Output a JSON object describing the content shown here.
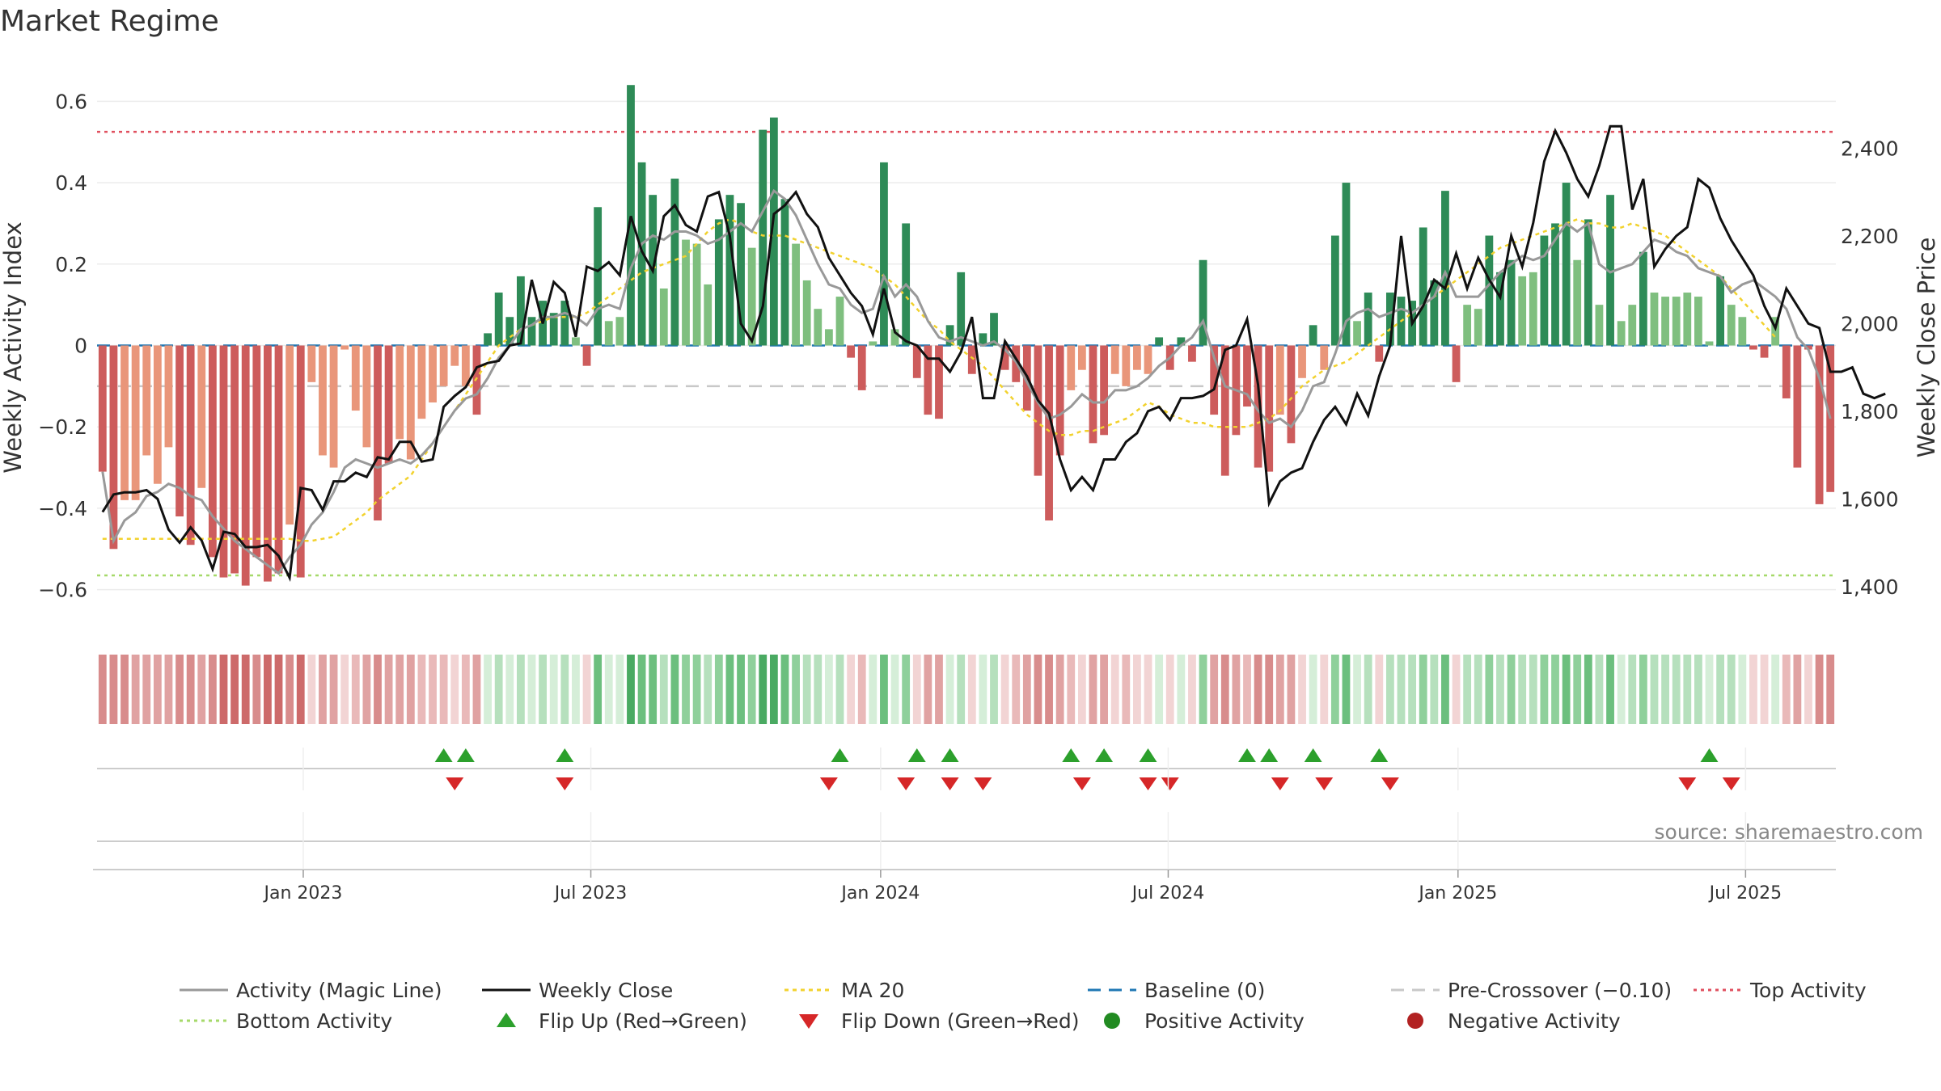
{
  "title": "Market Regime",
  "source": "source: sharemaestro.com",
  "colors": {
    "green_dark": "#2e8b57",
    "green_light": "#7fbf7f",
    "red_dark": "#cd5c5c",
    "red_light": "#e9967a",
    "activity_line": "#999999",
    "close_line": "#111111",
    "ma_line": "#f2d22e",
    "baseline": "#1f77b4",
    "precross": "#c8c8c8",
    "top_line": "#e0505f",
    "bottom_line": "#a6d96a",
    "flip_up": "#2ca02c",
    "flip_down": "#d62728",
    "pos_dot": "#228b22",
    "neg_dot": "#b22222"
  },
  "chart_data": {
    "type": "bar",
    "title": "Market Regime",
    "ylabel_left": "Weekly Activity Index",
    "ylabel_right": "Weekly Close Price",
    "ylim_left": [
      -0.7,
      0.7
    ],
    "ylim_right": [
      1300,
      2600
    ],
    "yticks_left": [
      "0.6",
      "0.4",
      "0.2",
      "0",
      "−0.2",
      "−0.4",
      "−0.6"
    ],
    "yticks_left_values": [
      0.6,
      0.4,
      0.2,
      0,
      -0.2,
      -0.4,
      -0.6
    ],
    "yticks_right": [
      "2,400",
      "2,200",
      "2,000",
      "1,800",
      "1,600",
      "1,400"
    ],
    "yticks_right_values": [
      2400,
      2200,
      2000,
      1800,
      1600,
      1400
    ],
    "x_date_ticks": [
      "Jan 2023",
      "Jul 2023",
      "Jan 2024",
      "Jul 2024",
      "Jan 2025",
      "Jul 2025"
    ],
    "x_date_tick_weeks": [
      18.5,
      44.3,
      70.3,
      96.1,
      122.1,
      147.9
    ],
    "x_week_range": [
      0,
      156
    ],
    "top_activity": 0.525,
    "bottom_activity": -0.565,
    "pre_crossover": -0.1,
    "activity": [
      -0.31,
      -0.5,
      -0.38,
      -0.38,
      -0.27,
      -0.34,
      -0.25,
      -0.42,
      -0.49,
      -0.35,
      -0.52,
      -0.57,
      -0.56,
      -0.59,
      -0.52,
      -0.58,
      -0.56,
      -0.44,
      -0.57,
      -0.09,
      -0.27,
      -0.3,
      -0.01,
      -0.16,
      -0.25,
      -0.43,
      -0.29,
      -0.23,
      -0.28,
      -0.18,
      -0.14,
      -0.1,
      -0.05,
      -0.1,
      -0.17,
      0.03,
      0.13,
      0.07,
      0.17,
      0.07,
      0.11,
      0.08,
      0.11,
      0.02,
      -0.05,
      0.34,
      0.06,
      0.07,
      0.64,
      0.45,
      0.37,
      0.14,
      0.41,
      0.26,
      0.25,
      0.15,
      0.31,
      0.37,
      0.35,
      0.24,
      0.53,
      0.56,
      0.36,
      0.25,
      0.16,
      0.09,
      0.04,
      0.12,
      -0.03,
      -0.11,
      0.01,
      0.45,
      0.04,
      0.3,
      -0.08,
      -0.17,
      -0.18,
      0.05,
      0.18,
      -0.07,
      0.03,
      0.08,
      -0.06,
      -0.09,
      -0.16,
      -0.32,
      -0.43,
      -0.27,
      -0.11,
      -0.06,
      -0.24,
      -0.22,
      -0.07,
      -0.1,
      -0.06,
      -0.07,
      0.02,
      -0.06,
      0.02,
      -0.04,
      0.21,
      -0.17,
      -0.32,
      -0.22,
      -0.15,
      -0.3,
      -0.31,
      -0.17,
      -0.24,
      -0.08,
      0.05,
      -0.06,
      0.27,
      0.4,
      0.06,
      0.13,
      -0.04,
      0.13,
      0.12,
      0.11,
      0.29,
      0.16,
      0.38,
      -0.09,
      0.1,
      0.09,
      0.27,
      0.18,
      0.21,
      0.17,
      0.18,
      0.27,
      0.3,
      0.4,
      0.21,
      0.31,
      0.1,
      0.37,
      0.06,
      0.1,
      0.23,
      0.13,
      0.12,
      0.12,
      0.13,
      0.12,
      0.01,
      0.17,
      0.1,
      0.07,
      -0.01,
      -0.03,
      0.07,
      -0.13,
      -0.3,
      -0.01,
      -0.39,
      -0.36
    ],
    "magic_line": [
      -0.31,
      -0.48,
      -0.43,
      -0.41,
      -0.37,
      -0.36,
      -0.34,
      -0.35,
      -0.37,
      -0.38,
      -0.42,
      -0.45,
      -0.48,
      -0.5,
      -0.52,
      -0.54,
      -0.56,
      -0.52,
      -0.49,
      -0.44,
      -0.41,
      -0.36,
      -0.3,
      -0.28,
      -0.29,
      -0.3,
      -0.29,
      -0.28,
      -0.29,
      -0.27,
      -0.24,
      -0.2,
      -0.16,
      -0.13,
      -0.12,
      -0.08,
      -0.03,
      0,
      0.04,
      0.05,
      0.07,
      0.07,
      0.08,
      0.07,
      0.05,
      0.09,
      0.1,
      0.09,
      0.19,
      0.25,
      0.27,
      0.26,
      0.28,
      0.28,
      0.27,
      0.25,
      0.26,
      0.28,
      0.3,
      0.28,
      0.33,
      0.38,
      0.36,
      0.32,
      0.26,
      0.2,
      0.15,
      0.14,
      0.1,
      0.08,
      0.09,
      0.17,
      0.12,
      0.15,
      0.12,
      0.06,
      0.02,
      0.01,
      0.02,
      0.01,
      0,
      0.01,
      -0.01,
      -0.04,
      -0.09,
      -0.14,
      -0.18,
      -0.17,
      -0.15,
      -0.12,
      -0.14,
      -0.14,
      -0.11,
      -0.11,
      -0.1,
      -0.08,
      -0.05,
      -0.03,
      0,
      0.02,
      0.06,
      -0.03,
      -0.1,
      -0.11,
      -0.12,
      -0.16,
      -0.19,
      -0.18,
      -0.2,
      -0.16,
      -0.1,
      -0.09,
      -0.02,
      0.06,
      0.08,
      0.09,
      0.07,
      0.08,
      0.09,
      0.08,
      0.1,
      0.12,
      0.18,
      0.12,
      0.12,
      0.12,
      0.15,
      0.18,
      0.2,
      0.22,
      0.21,
      0.22,
      0.26,
      0.3,
      0.28,
      0.3,
      0.2,
      0.18,
      0.19,
      0.2,
      0.23,
      0.26,
      0.25,
      0.23,
      0.22,
      0.19,
      0.18,
      0.17,
      0.13,
      0.15,
      0.16,
      0.14,
      0.12,
      0.09,
      0.02,
      -0.01,
      -0.08,
      -0.18
    ],
    "ma20": [
      -0.475,
      -0.475,
      -0.475,
      -0.475,
      -0.475,
      -0.475,
      -0.475,
      -0.475,
      -0.475,
      -0.475,
      -0.475,
      -0.475,
      -0.475,
      -0.475,
      -0.475,
      -0.475,
      -0.475,
      -0.475,
      -0.48,
      -0.48,
      -0.475,
      -0.47,
      -0.45,
      -0.43,
      -0.41,
      -0.38,
      -0.36,
      -0.34,
      -0.32,
      -0.28,
      -0.24,
      -0.2,
      -0.16,
      -0.12,
      -0.08,
      -0.04,
      0,
      0.02,
      0.04,
      0.05,
      0.06,
      0.07,
      0.07,
      0.07,
      0.08,
      0.1,
      0.12,
      0.14,
      0.16,
      0.18,
      0.19,
      0.2,
      0.21,
      0.22,
      0.25,
      0.28,
      0.3,
      0.31,
      0.3,
      0.28,
      0.27,
      0.27,
      0.27,
      0.26,
      0.25,
      0.24,
      0.23,
      0.22,
      0.21,
      0.2,
      0.19,
      0.17,
      0.15,
      0.12,
      0.09,
      0.06,
      0.04,
      0.01,
      -0.01,
      -0.03,
      -0.05,
      -0.08,
      -0.11,
      -0.14,
      -0.17,
      -0.19,
      -0.21,
      -0.22,
      -0.22,
      -0.21,
      -0.21,
      -0.2,
      -0.19,
      -0.18,
      -0.16,
      -0.14,
      -0.15,
      -0.17,
      -0.18,
      -0.19,
      -0.19,
      -0.2,
      -0.2,
      -0.2,
      -0.2,
      -0.19,
      -0.18,
      -0.16,
      -0.13,
      -0.1,
      -0.08,
      -0.06,
      -0.05,
      -0.04,
      -0.02,
      0,
      0.02,
      0.04,
      0.06,
      0.08,
      0.1,
      0.12,
      0.14,
      0.16,
      0.18,
      0.2,
      0.22,
      0.24,
      0.25,
      0.26,
      0.27,
      0.28,
      0.29,
      0.3,
      0.31,
      0.3,
      0.3,
      0.29,
      0.29,
      0.3,
      0.29,
      0.28,
      0.27,
      0.25,
      0.23,
      0.21,
      0.19,
      0.17,
      0.14,
      0.11,
      0.08,
      0.05,
      0.02
    ],
    "weekly_close": [
      1570,
      1610,
      1615,
      1615,
      1620,
      1600,
      1530,
      1500,
      1535,
      1505,
      1440,
      1525,
      1520,
      1490,
      1490,
      1495,
      1470,
      1420,
      1625,
      1620,
      1575,
      1640,
      1640,
      1660,
      1650,
      1695,
      1690,
      1730,
      1730,
      1685,
      1690,
      1810,
      1835,
      1855,
      1900,
      1910,
      1915,
      1950,
      1955,
      2100,
      2000,
      2095,
      2070,
      1970,
      2130,
      2120,
      2140,
      2110,
      2245,
      2165,
      2120,
      2245,
      2270,
      2225,
      2210,
      2290,
      2300,
      2200,
      2000,
      1960,
      2040,
      2250,
      2270,
      2300,
      2250,
      2220,
      2150,
      2110,
      2070,
      2040,
      1975,
      2080,
      1980,
      1960,
      1950,
      1920,
      1920,
      1890,
      1935,
      2015,
      1830,
      1830,
      1960,
      1920,
      1880,
      1825,
      1795,
      1690,
      1620,
      1650,
      1620,
      1690,
      1690,
      1730,
      1750,
      1800,
      1810,
      1780,
      1830,
      1830,
      1835,
      1850,
      1940,
      1950,
      2010,
      1860,
      1590,
      1640,
      1660,
      1670,
      1730,
      1780,
      1810,
      1770,
      1840,
      1790,
      1880,
      1950,
      2200,
      2000,
      2040,
      2100,
      2080,
      2160,
      2080,
      2150,
      2100,
      2060,
      2200,
      2130,
      2230,
      2370,
      2440,
      2390,
      2330,
      2290,
      2360,
      2450,
      2450,
      2260,
      2330,
      2130,
      2170,
      2200,
      2220,
      2330,
      2310,
      2240,
      2190,
      2150,
      2110,
      2040,
      1990,
      2080,
      2040,
      2000,
      1990,
      1890,
      1890,
      1900,
      1840,
      1830,
      1840
    ]
  },
  "regime_strip": {
    "levels": [
      -4,
      -4,
      -4,
      -3,
      -3,
      -3,
      -3,
      -4,
      -4,
      -3,
      -4,
      -5,
      -5,
      -5,
      -4,
      -5,
      -5,
      -4,
      -5,
      -1,
      -3,
      -3,
      -1,
      -2,
      -3,
      -4,
      -3,
      -3,
      -3,
      -2,
      -2,
      -2,
      -1,
      -2,
      -3,
      1,
      2,
      1,
      2,
      1,
      2,
      1,
      2,
      1,
      -1,
      4,
      1,
      1,
      5,
      4,
      4,
      2,
      4,
      3,
      3,
      2,
      3,
      4,
      4,
      3,
      5,
      5,
      4,
      3,
      2,
      2,
      1,
      2,
      -1,
      -2,
      1,
      4,
      1,
      3,
      -1,
      -3,
      -3,
      1,
      2,
      -1,
      1,
      2,
      -1,
      -2,
      -3,
      -4,
      -4,
      -3,
      -2,
      -1,
      -3,
      -3,
      -1,
      -2,
      -1,
      -1,
      1,
      -1,
      1,
      -1,
      3,
      -3,
      -4,
      -3,
      -2,
      -4,
      -4,
      -3,
      -3,
      -1,
      1,
      -1,
      3,
      4,
      1,
      2,
      -1,
      2,
      2,
      2,
      3,
      2,
      4,
      -1,
      2,
      2,
      3,
      2,
      3,
      2,
      2,
      3,
      3,
      4,
      3,
      4,
      2,
      4,
      1,
      2,
      3,
      2,
      2,
      2,
      2,
      2,
      1,
      2,
      2,
      1,
      -1,
      -1,
      1,
      -2,
      -3,
      -1,
      -4,
      -4
    ]
  },
  "flip_up_weeks": [
    31,
    33,
    42,
    67,
    74,
    77,
    88,
    91,
    95,
    104,
    106,
    110,
    116,
    146
  ],
  "flip_down_weeks": [
    32,
    42,
    66,
    73,
    77,
    80,
    89,
    95,
    97,
    107,
    111,
    117,
    144,
    148
  ],
  "legend": {
    "activity": "Activity (Magic Line)",
    "close": "Weekly Close",
    "ma20": "MA 20",
    "baseline": "Baseline (0)",
    "precross": "Pre-Crossover (−0.10)",
    "top": "Top Activity",
    "bottom": "Bottom Activity",
    "flip_up": "Flip Up (Red→Green)",
    "flip_down": "Flip Down (Green→Red)",
    "positive": "Positive Activity",
    "negative": "Negative Activity"
  }
}
